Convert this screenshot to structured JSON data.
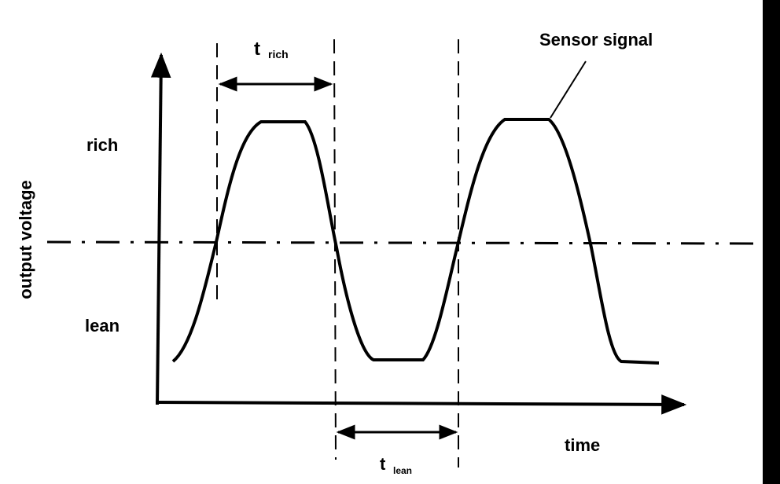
{
  "title": "Sensor signal",
  "y_axis": {
    "label": "output voltage",
    "high": "rich",
    "low": "lean"
  },
  "x_axis": {
    "label": "time"
  },
  "t_rich": {
    "main": "t",
    "sub": "rich"
  },
  "t_lean": {
    "main": "t",
    "sub": "lean"
  }
}
